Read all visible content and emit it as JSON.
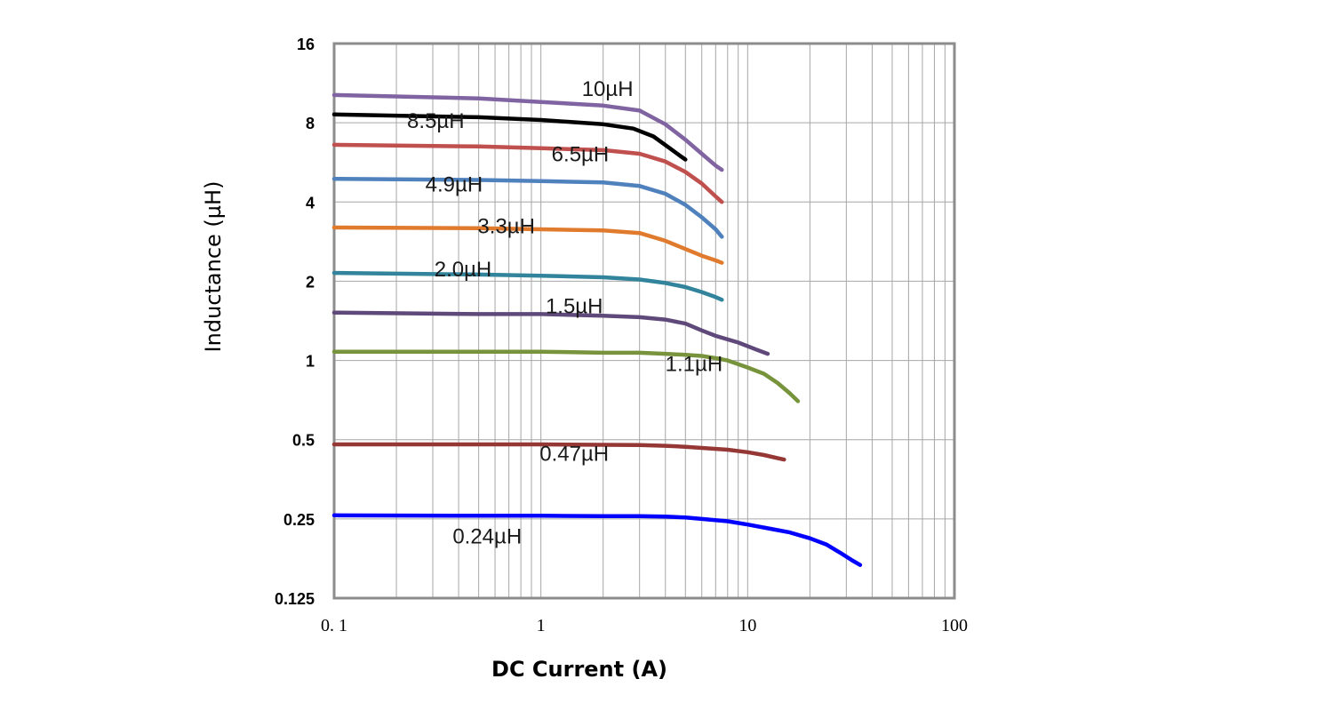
{
  "chart_data": {
    "type": "line",
    "title": "",
    "xlabel": "DC Current (A)",
    "ylabel": "Inductance (µH)",
    "xscale": "log",
    "yscale": "log2",
    "xlim": [
      0.1,
      100
    ],
    "ylim": [
      0.125,
      16
    ],
    "x_ticks": [
      {
        "value": 0.1,
        "label": "0. 1"
      },
      {
        "value": 1,
        "label": "1"
      },
      {
        "value": 10,
        "label": "10"
      },
      {
        "value": 100,
        "label": "100"
      }
    ],
    "y_ticks": [
      {
        "value": 0.125,
        "label": "0.125"
      },
      {
        "value": 0.25,
        "label": "0.25"
      },
      {
        "value": 0.5,
        "label": "0.5"
      },
      {
        "value": 1,
        "label": "1"
      },
      {
        "value": 2,
        "label": "2"
      },
      {
        "value": 4,
        "label": "4"
      },
      {
        "value": 8,
        "label": "8"
      },
      {
        "value": 16,
        "label": "16"
      }
    ],
    "grid": true,
    "series": [
      {
        "name": "10µH",
        "label": "10µH",
        "color": "#8064a2",
        "label_at": [
          2.1,
          10.1
        ],
        "points": [
          [
            0.1,
            10.2
          ],
          [
            0.5,
            9.9
          ],
          [
            1,
            9.6
          ],
          [
            2,
            9.3
          ],
          [
            3,
            8.9
          ],
          [
            4,
            7.9
          ],
          [
            5,
            6.9
          ],
          [
            6,
            6.1
          ],
          [
            7,
            5.5
          ],
          [
            7.5,
            5.3
          ]
        ]
      },
      {
        "name": "8.5µH",
        "label": "8.5µH",
        "color": "#000000",
        "label_at": [
          0.31,
          7.65
        ],
        "points": [
          [
            0.1,
            8.6
          ],
          [
            0.5,
            8.4
          ],
          [
            1,
            8.2
          ],
          [
            2,
            7.9
          ],
          [
            2.8,
            7.6
          ],
          [
            3.5,
            7.1
          ],
          [
            4.2,
            6.4
          ],
          [
            4.7,
            6.0
          ],
          [
            5,
            5.8
          ]
        ]
      },
      {
        "name": "6.5µH",
        "label": "6.5µH",
        "color": "#c0504d",
        "label_at": [
          1.55,
          5.7
        ],
        "points": [
          [
            0.1,
            6.6
          ],
          [
            0.5,
            6.5
          ],
          [
            1,
            6.4
          ],
          [
            2,
            6.3
          ],
          [
            3,
            6.1
          ],
          [
            4,
            5.7
          ],
          [
            5,
            5.2
          ],
          [
            6,
            4.7
          ],
          [
            7,
            4.2
          ],
          [
            7.5,
            4.0
          ]
        ]
      },
      {
        "name": "4.9µH",
        "label": "4.9µH",
        "color": "#4f81bd",
        "label_at": [
          0.38,
          4.38
        ],
        "points": [
          [
            0.1,
            4.9
          ],
          [
            0.5,
            4.85
          ],
          [
            1,
            4.8
          ],
          [
            2,
            4.75
          ],
          [
            3,
            4.6
          ],
          [
            4,
            4.3
          ],
          [
            5,
            3.9
          ],
          [
            6,
            3.5
          ],
          [
            7,
            3.15
          ],
          [
            7.5,
            2.95
          ]
        ]
      },
      {
        "name": "3.3µH",
        "label": "3.3µH",
        "color": "#e07b2e",
        "label_at": [
          0.68,
          3.04
        ],
        "points": [
          [
            0.1,
            3.2
          ],
          [
            0.5,
            3.18
          ],
          [
            1,
            3.15
          ],
          [
            2,
            3.12
          ],
          [
            3,
            3.05
          ],
          [
            4,
            2.85
          ],
          [
            5,
            2.65
          ],
          [
            6,
            2.5
          ],
          [
            7,
            2.4
          ],
          [
            7.5,
            2.35
          ]
        ]
      },
      {
        "name": "2.0µH",
        "label": "2.0µH",
        "color": "#31849b",
        "label_at": [
          0.42,
          2.09
        ],
        "points": [
          [
            0.1,
            2.15
          ],
          [
            0.5,
            2.12
          ],
          [
            1,
            2.1
          ],
          [
            2,
            2.07
          ],
          [
            3,
            2.03
          ],
          [
            4,
            1.97
          ],
          [
            5,
            1.9
          ],
          [
            6,
            1.82
          ],
          [
            7,
            1.74
          ],
          [
            7.5,
            1.7
          ]
        ]
      },
      {
        "name": "1.5µH",
        "label": "1.5µH",
        "color": "#5f497a",
        "label_at": [
          1.45,
          1.51
        ],
        "points": [
          [
            0.1,
            1.52
          ],
          [
            0.5,
            1.5
          ],
          [
            1,
            1.5
          ],
          [
            2,
            1.48
          ],
          [
            3,
            1.46
          ],
          [
            4,
            1.43
          ],
          [
            5,
            1.38
          ],
          [
            6,
            1.3
          ],
          [
            7,
            1.24
          ],
          [
            9,
            1.17
          ],
          [
            11,
            1.1
          ],
          [
            12.5,
            1.06
          ]
        ]
      },
      {
        "name": "1.1µH",
        "label": "1.1µH",
        "color": "#77933c",
        "label_at": [
          5.5,
          0.91
        ],
        "points": [
          [
            0.1,
            1.08
          ],
          [
            0.5,
            1.08
          ],
          [
            1,
            1.08
          ],
          [
            2,
            1.07
          ],
          [
            3,
            1.07
          ],
          [
            4,
            1.06
          ],
          [
            5,
            1.05
          ],
          [
            6,
            1.04
          ],
          [
            7,
            1.02
          ],
          [
            8,
            1.0
          ],
          [
            10,
            0.94
          ],
          [
            12,
            0.89
          ],
          [
            14,
            0.82
          ],
          [
            16,
            0.75
          ],
          [
            17.5,
            0.7
          ]
        ]
      },
      {
        "name": "0.47µH",
        "label": "0.47µH",
        "color": "#953735",
        "label_at": [
          1.45,
          0.416
        ],
        "points": [
          [
            0.1,
            0.48
          ],
          [
            0.5,
            0.48
          ],
          [
            1,
            0.48
          ],
          [
            2,
            0.478
          ],
          [
            3,
            0.477
          ],
          [
            4,
            0.474
          ],
          [
            5,
            0.47
          ],
          [
            6,
            0.465
          ],
          [
            8,
            0.458
          ],
          [
            10,
            0.448
          ],
          [
            12,
            0.437
          ],
          [
            14,
            0.425
          ],
          [
            15,
            0.42
          ]
        ]
      },
      {
        "name": "0.24µH",
        "label": "0.24µH",
        "color": "#0000ff",
        "label_at": [
          0.55,
          0.202
        ],
        "points": [
          [
            0.1,
            0.258
          ],
          [
            0.5,
            0.257
          ],
          [
            1,
            0.257
          ],
          [
            2,
            0.256
          ],
          [
            3,
            0.256
          ],
          [
            4,
            0.255
          ],
          [
            5,
            0.253
          ],
          [
            6,
            0.25
          ],
          [
            8,
            0.245
          ],
          [
            10,
            0.238
          ],
          [
            13,
            0.229
          ],
          [
            16,
            0.222
          ],
          [
            20,
            0.211
          ],
          [
            24,
            0.2
          ],
          [
            28,
            0.186
          ],
          [
            32,
            0.174
          ],
          [
            35,
            0.167
          ]
        ]
      }
    ]
  }
}
